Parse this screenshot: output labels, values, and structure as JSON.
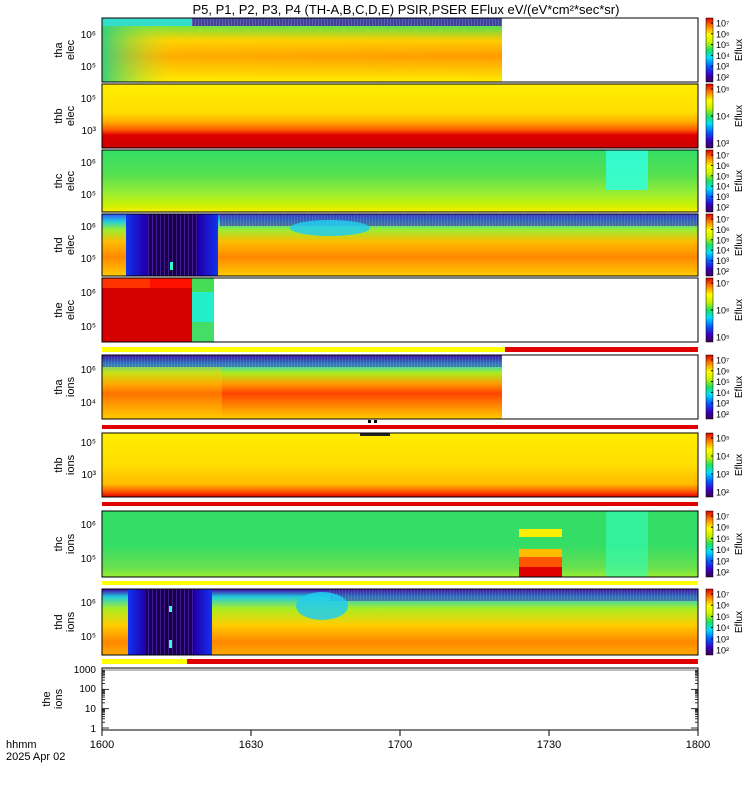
{
  "title": "P5, P1, P2, P3, P4 (TH-A,B,C,D,E) PSIR,PSER EFlux eV/(eV*cm²*sec*sr)",
  "xaxis": {
    "label_line1": "hhmm",
    "label_line2": "2025 Apr 02",
    "ticks": [
      "1600",
      "1630",
      "1700",
      "1730",
      "1800"
    ]
  },
  "colors": {
    "red": "#e00000",
    "yellow": "#ffff00",
    "orange": "#ff8800",
    "green": "#33dd66",
    "cyan": "#00ffff",
    "blue": "#0000ff",
    "purple": "#6a00a0",
    "white": "#ffffff"
  },
  "chart_data": [
    {
      "type": "heatmap",
      "name": "tha elec",
      "ylabel": [
        "tha",
        "elec"
      ],
      "yticks": [
        "10⁵",
        "10⁶"
      ],
      "colorbar_label": "Eflux",
      "colorbar_ticks": [
        "10²",
        "10³",
        "10⁴",
        "10⁵",
        "10⁶",
        "10⁷"
      ],
      "data_end_time": "1720"
    },
    {
      "type": "heatmap",
      "name": "thb elec",
      "ylabel": [
        "thb",
        "elec"
      ],
      "yticks": [
        "10³",
        "10⁵"
      ],
      "colorbar_label": "Eflux",
      "colorbar_ticks": [
        "10³",
        "10⁴",
        "10⁵"
      ],
      "data_end_time": "1800"
    },
    {
      "type": "heatmap",
      "name": "thc elec",
      "ylabel": [
        "thc",
        "elec"
      ],
      "yticks": [
        "10⁵",
        "10⁶"
      ],
      "colorbar_label": "Eflux",
      "colorbar_ticks": [
        "10²",
        "10³",
        "10⁴",
        "10⁵",
        "10⁶",
        "10⁷"
      ],
      "data_end_time": "1800"
    },
    {
      "type": "heatmap",
      "name": "thd elec",
      "ylabel": [
        "thd",
        "elec"
      ],
      "yticks": [
        "10⁵",
        "10⁶"
      ],
      "colorbar_label": "Eflux",
      "colorbar_ticks": [
        "10²",
        "10³",
        "10⁴",
        "10⁵",
        "10⁶",
        "10⁷"
      ],
      "data_end_time": "1800"
    },
    {
      "type": "heatmap",
      "name": "the elec",
      "ylabel": [
        "the",
        "elec"
      ],
      "yticks": [
        "10⁵",
        "10⁶"
      ],
      "colorbar_label": "Eflux",
      "colorbar_ticks": [
        "10⁵",
        "10⁶",
        "10⁷"
      ],
      "data_end_time": "1622"
    },
    {
      "type": "heatmap",
      "name": "tha ions",
      "ylabel": [
        "tha",
        "ions"
      ],
      "yticks": [
        "10⁴",
        "10⁶"
      ],
      "colorbar_label": "Eflux",
      "colorbar_ticks": [
        "10²",
        "10³",
        "10⁴",
        "10⁵",
        "10⁶",
        "10⁷"
      ],
      "data_end_time": "1720"
    },
    {
      "type": "heatmap",
      "name": "thb ions",
      "ylabel": [
        "thb",
        "ions"
      ],
      "yticks": [
        "10³",
        "10⁵"
      ],
      "colorbar_label": "Eflux",
      "colorbar_ticks": [
        "10²",
        "10³",
        "10⁴",
        "10⁵"
      ],
      "data_end_time": "1800"
    },
    {
      "type": "heatmap",
      "name": "thc ions",
      "ylabel": [
        "thc",
        "ions"
      ],
      "yticks": [
        "10⁵",
        "10⁶"
      ],
      "colorbar_label": "Eflux",
      "colorbar_ticks": [
        "10²",
        "10³",
        "10⁴",
        "10⁵",
        "10⁶",
        "10⁷"
      ],
      "data_end_time": "1800"
    },
    {
      "type": "heatmap",
      "name": "thd ions",
      "ylabel": [
        "thd",
        "ions"
      ],
      "yticks": [
        "10⁵",
        "10⁶"
      ],
      "colorbar_label": "Eflux",
      "colorbar_ticks": [
        "10²",
        "10³",
        "10⁴",
        "10⁵",
        "10⁶",
        "10⁷"
      ],
      "data_end_time": "1800"
    },
    {
      "type": "line",
      "name": "the ions",
      "ylabel": [
        "the",
        "ions"
      ],
      "yscale": "log",
      "ylim": [
        1,
        1000
      ],
      "yticks": [
        "1",
        "10",
        "100",
        "1000"
      ],
      "data_end_time": "1800"
    }
  ]
}
